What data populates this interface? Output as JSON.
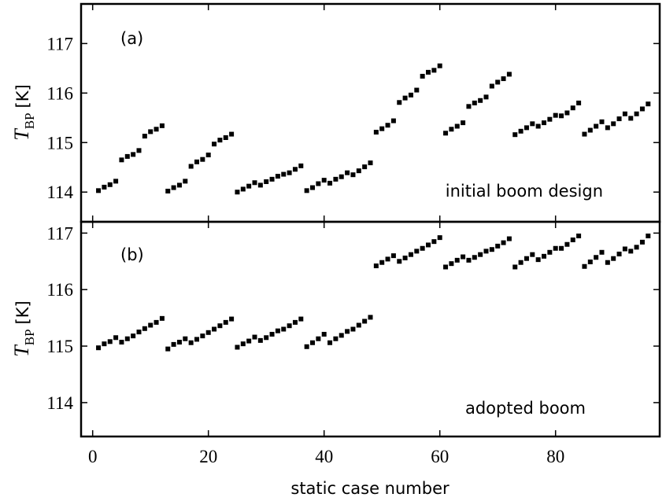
{
  "xlabel": "static case number",
  "x_tick_labels": [
    "0",
    "20",
    "40",
    "60",
    "80"
  ],
  "chart_data": [
    {
      "type": "scatter",
      "panel_label": "(a)",
      "annotation": "initial boom design",
      "ylabel": {
        "main": "T",
        "sub": "BP",
        "unit": "[K]"
      },
      "y_tick_labels": [
        "114",
        "115",
        "116",
        "117"
      ],
      "xlim": [
        -2,
        98
      ],
      "ylim": [
        113.4,
        117.8
      ],
      "marker_color": "#000000",
      "x": [
        1,
        2,
        3,
        4,
        5,
        6,
        7,
        8,
        9,
        10,
        11,
        12,
        13,
        14,
        15,
        16,
        17,
        18,
        19,
        20,
        21,
        22,
        23,
        24,
        25,
        26,
        27,
        28,
        29,
        30,
        31,
        32,
        33,
        34,
        35,
        36,
        37,
        38,
        39,
        40,
        41,
        42,
        43,
        44,
        45,
        46,
        47,
        48,
        49,
        50,
        51,
        52,
        53,
        54,
        55,
        56,
        57,
        58,
        59,
        60,
        61,
        62,
        63,
        64,
        65,
        66,
        67,
        68,
        69,
        70,
        71,
        72,
        73,
        74,
        75,
        76,
        77,
        78,
        79,
        80,
        81,
        82,
        83,
        84,
        85,
        86,
        87,
        88,
        89,
        90,
        91,
        92,
        93,
        94,
        95,
        96
      ],
      "y": [
        114.03,
        114.1,
        114.15,
        114.22,
        114.65,
        114.72,
        114.76,
        114.84,
        115.13,
        115.22,
        115.27,
        115.34,
        114.02,
        114.09,
        114.14,
        114.22,
        114.52,
        114.61,
        114.66,
        114.75,
        114.97,
        115.05,
        115.1,
        115.17,
        114.0,
        114.06,
        114.12,
        114.19,
        114.14,
        114.21,
        114.26,
        114.32,
        114.36,
        114.39,
        114.46,
        114.53,
        114.03,
        114.09,
        114.17,
        114.24,
        114.18,
        114.26,
        114.31,
        114.39,
        114.35,
        114.43,
        114.51,
        114.59,
        115.21,
        115.28,
        115.35,
        115.44,
        115.81,
        115.9,
        115.96,
        116.06,
        116.34,
        116.42,
        116.46,
        116.55,
        115.19,
        115.27,
        115.33,
        115.4,
        115.73,
        115.8,
        115.85,
        115.92,
        116.14,
        116.22,
        116.29,
        116.38,
        115.16,
        115.23,
        115.3,
        115.38,
        115.33,
        115.4,
        115.47,
        115.55,
        115.54,
        115.6,
        115.7,
        115.8,
        115.17,
        115.25,
        115.33,
        115.42,
        115.3,
        115.38,
        115.48,
        115.58,
        115.49,
        115.58,
        115.68,
        115.78
      ]
    },
    {
      "type": "scatter",
      "panel_label": "(b)",
      "annotation": "adopted boom",
      "ylabel": {
        "main": "T",
        "sub": "BP",
        "unit": "[K]"
      },
      "y_tick_labels": [
        "114",
        "115",
        "116",
        "117"
      ],
      "xlim": [
        -2,
        98
      ],
      "ylim": [
        113.4,
        117.2
      ],
      "marker_color": "#000000",
      "x": [
        1,
        2,
        3,
        4,
        5,
        6,
        7,
        8,
        9,
        10,
        11,
        12,
        13,
        14,
        15,
        16,
        17,
        18,
        19,
        20,
        21,
        22,
        23,
        24,
        25,
        26,
        27,
        28,
        29,
        30,
        31,
        32,
        33,
        34,
        35,
        36,
        37,
        38,
        39,
        40,
        41,
        42,
        43,
        44,
        45,
        46,
        47,
        48,
        49,
        50,
        51,
        52,
        53,
        54,
        55,
        56,
        57,
        58,
        59,
        60,
        61,
        62,
        63,
        64,
        65,
        66,
        67,
        68,
        69,
        70,
        71,
        72,
        73,
        74,
        75,
        76,
        77,
        78,
        79,
        80,
        81,
        82,
        83,
        84,
        85,
        86,
        87,
        88,
        89,
        90,
        91,
        92,
        93,
        94,
        95,
        96
      ],
      "y": [
        114.97,
        115.04,
        115.08,
        115.15,
        115.07,
        115.13,
        115.18,
        115.25,
        115.31,
        115.37,
        115.42,
        115.49,
        114.95,
        115.03,
        115.07,
        115.13,
        115.06,
        115.12,
        115.18,
        115.24,
        115.3,
        115.36,
        115.42,
        115.48,
        114.98,
        115.04,
        115.09,
        115.16,
        115.1,
        115.15,
        115.21,
        115.27,
        115.3,
        115.36,
        115.42,
        115.48,
        114.99,
        115.06,
        115.13,
        115.21,
        115.06,
        115.13,
        115.19,
        115.26,
        115.3,
        115.37,
        115.44,
        115.51,
        116.42,
        116.48,
        116.54,
        116.6,
        116.5,
        116.56,
        116.62,
        116.68,
        116.73,
        116.79,
        116.85,
        116.92,
        116.4,
        116.46,
        116.52,
        116.58,
        116.52,
        116.57,
        116.62,
        116.68,
        116.71,
        116.77,
        116.83,
        116.9,
        116.4,
        116.48,
        116.55,
        116.62,
        116.53,
        116.59,
        116.66,
        116.73,
        116.73,
        116.8,
        116.88,
        116.95,
        116.41,
        116.49,
        116.57,
        116.66,
        116.48,
        116.55,
        116.63,
        116.72,
        116.68,
        116.75,
        116.84,
        116.95
      ]
    }
  ]
}
